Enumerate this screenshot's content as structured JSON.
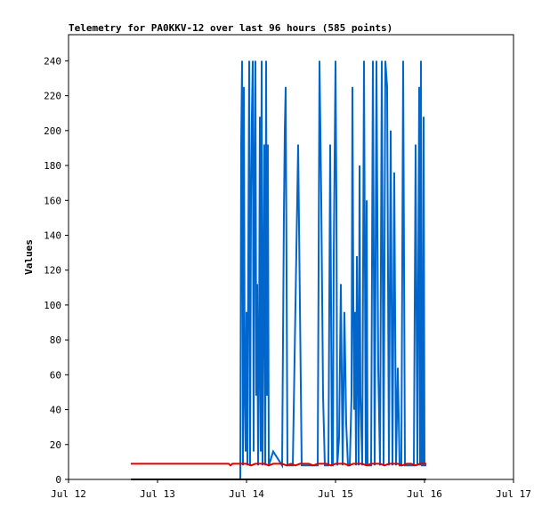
{
  "chart_data": {
    "type": "line",
    "title": "Telemetry for PA0KKV-12 over last 96 hours (585 points)",
    "xlabel": "",
    "ylabel": "Values",
    "xlim": [
      0,
      5
    ],
    "ylim": [
      0,
      255
    ],
    "x_tick_labels": [
      "Jul 12",
      "Jul 13",
      "Jul 14",
      "Jul 15",
      "Jul 16",
      "Jul 17"
    ],
    "y_ticks": [
      0,
      20,
      40,
      60,
      80,
      100,
      120,
      140,
      160,
      180,
      200,
      220,
      240
    ],
    "grid": false,
    "legend": "none",
    "series": [
      {
        "color": "#0066cc",
        "x": [
          1.93,
          1.94,
          1.95,
          1.96,
          1.97,
          1.98,
          1.99,
          2.0,
          2.01,
          2.02,
          2.03,
          2.04,
          2.05,
          2.06,
          2.07,
          2.08,
          2.09,
          2.1,
          2.11,
          2.12,
          2.13,
          2.14,
          2.15,
          2.16,
          2.17,
          2.18,
          2.19,
          2.2,
          2.21,
          2.22,
          2.23,
          2.24,
          2.25,
          2.3,
          2.4,
          2.42,
          2.43,
          2.44,
          2.46,
          2.5,
          2.52,
          2.58,
          2.62,
          2.63,
          2.64,
          2.68,
          2.74,
          2.76,
          2.78,
          2.8,
          2.82,
          2.84,
          2.86,
          2.88,
          2.9,
          2.92,
          2.94,
          2.96,
          2.97,
          2.98,
          3.0,
          3.01,
          3.02,
          3.04,
          3.06,
          3.08,
          3.1,
          3.12,
          3.14,
          3.16,
          3.18,
          3.19,
          3.2,
          3.21,
          3.22,
          3.23,
          3.24,
          3.25,
          3.26,
          3.27,
          3.28,
          3.3,
          3.32,
          3.34,
          3.35,
          3.36,
          3.38,
          3.4,
          3.42,
          3.44,
          3.46,
          3.48,
          3.5,
          3.52,
          3.54,
          3.56,
          3.58,
          3.6,
          3.62,
          3.64,
          3.66,
          3.68,
          3.7,
          3.72,
          3.74,
          3.76,
          3.78,
          3.8,
          3.82,
          3.84,
          3.86,
          3.88,
          3.9,
          3.92,
          3.94,
          3.95,
          3.96,
          3.97,
          3.98,
          3.99,
          4.0,
          4.02
        ],
        "y": [
          0,
          192,
          240,
          8,
          225,
          48,
          16,
          96,
          8,
          128,
          240,
          8,
          160,
          208,
          240,
          16,
          176,
          240,
          48,
          112,
          8,
          64,
          208,
          16,
          240,
          8,
          104,
          192,
          8,
          240,
          48,
          192,
          8,
          16,
          8,
          152,
          200,
          225,
          8,
          8,
          8,
          192,
          8,
          8,
          8,
          8,
          8,
          8,
          8,
          8,
          240,
          160,
          48,
          8,
          8,
          8,
          192,
          8,
          8,
          128,
          240,
          160,
          8,
          24,
          112,
          8,
          96,
          32,
          8,
          8,
          48,
          225,
          104,
          40,
          96,
          8,
          128,
          72,
          8,
          180,
          48,
          8,
          240,
          8,
          160,
          8,
          8,
          8,
          240,
          8,
          240,
          64,
          8,
          240,
          8,
          240,
          225,
          8,
          200,
          8,
          176,
          8,
          64,
          8,
          8,
          240,
          8,
          8,
          8,
          8,
          8,
          8,
          192,
          8,
          225,
          8,
          240,
          8,
          8,
          208,
          8,
          8
        ]
      },
      {
        "color": "#dd0000",
        "x": [
          0.7,
          1.8,
          1.82,
          1.84,
          1.86,
          1.9,
          1.95,
          2.0,
          2.05,
          2.1,
          2.15,
          2.2,
          2.25,
          2.3,
          2.35,
          2.4,
          2.45,
          2.5,
          2.55,
          2.6,
          2.65,
          2.7,
          2.75,
          2.8,
          2.85,
          2.9,
          2.95,
          3.0,
          3.05,
          3.1,
          3.15,
          3.2,
          3.25,
          3.3,
          3.35,
          3.4,
          3.45,
          3.5,
          3.55,
          3.6,
          3.65,
          3.7,
          3.75,
          3.8,
          3.85,
          3.9,
          3.95,
          4.0,
          4.02
        ],
        "y": [
          9,
          9,
          8,
          9,
          9,
          9,
          9,
          9,
          8,
          9,
          9,
          9,
          8,
          9,
          9,
          9,
          8,
          9,
          8,
          9,
          9,
          9,
          8,
          9,
          9,
          9,
          8,
          9,
          9,
          9,
          8,
          9,
          9,
          9,
          8,
          9,
          9,
          9,
          8,
          9,
          9,
          9,
          8,
          9,
          9,
          8,
          9,
          9,
          9
        ]
      },
      {
        "color": "#000000",
        "x": [
          0.7,
          4.02
        ],
        "y": [
          0,
          0
        ]
      }
    ]
  }
}
